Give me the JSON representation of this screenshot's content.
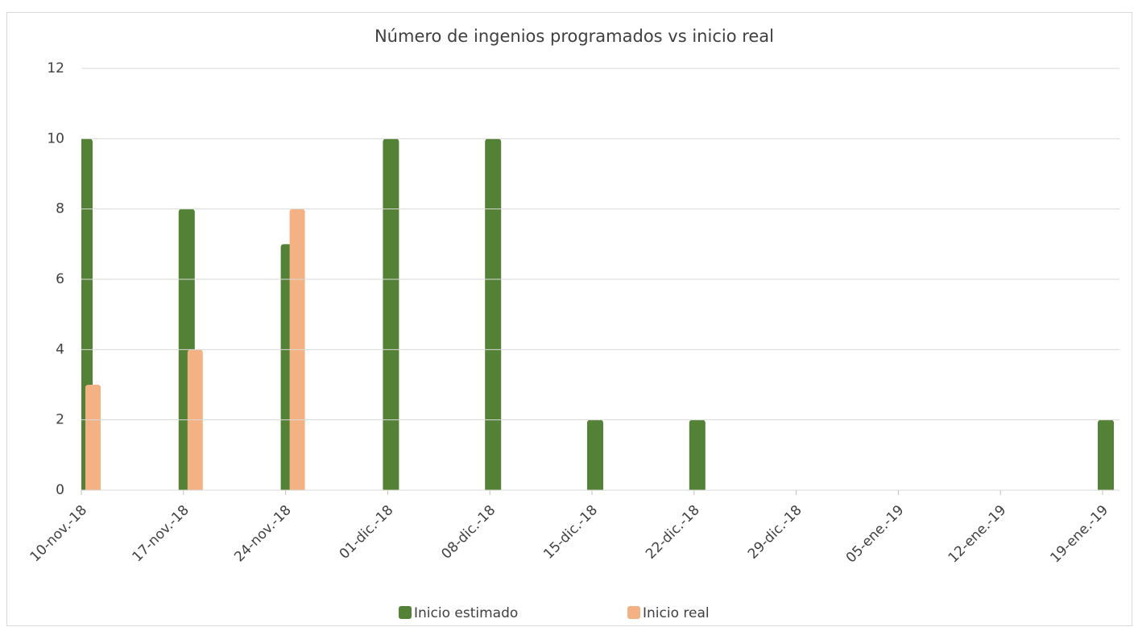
{
  "chart_data": {
    "type": "bar",
    "title": "Número de ingenios programados vs inicio real",
    "categories": [
      "10-nov.-18",
      "17-nov.-18",
      "24-nov.-18",
      "01-dic.-18",
      "08-dic.-18",
      "15-dic.-18",
      "22-dic.-18",
      "29-dic.-18",
      "05-ene.-19",
      "12-ene.-19",
      "19-ene.-19"
    ],
    "series": [
      {
        "name": "Inicio estimado",
        "color": "#538135",
        "values": [
          10,
          8,
          7,
          10,
          10,
          2,
          2,
          0,
          0,
          0,
          2
        ]
      },
      {
        "name": "Inicio real",
        "color": "#f4b183",
        "values": [
          3,
          4,
          8,
          0,
          0,
          0,
          0,
          0,
          0,
          0,
          0
        ]
      }
    ],
    "ylim": [
      0,
      12
    ],
    "yticks": [
      0,
      2,
      4,
      6,
      8,
      10,
      12
    ],
    "grid": true,
    "legend": "bottom"
  }
}
